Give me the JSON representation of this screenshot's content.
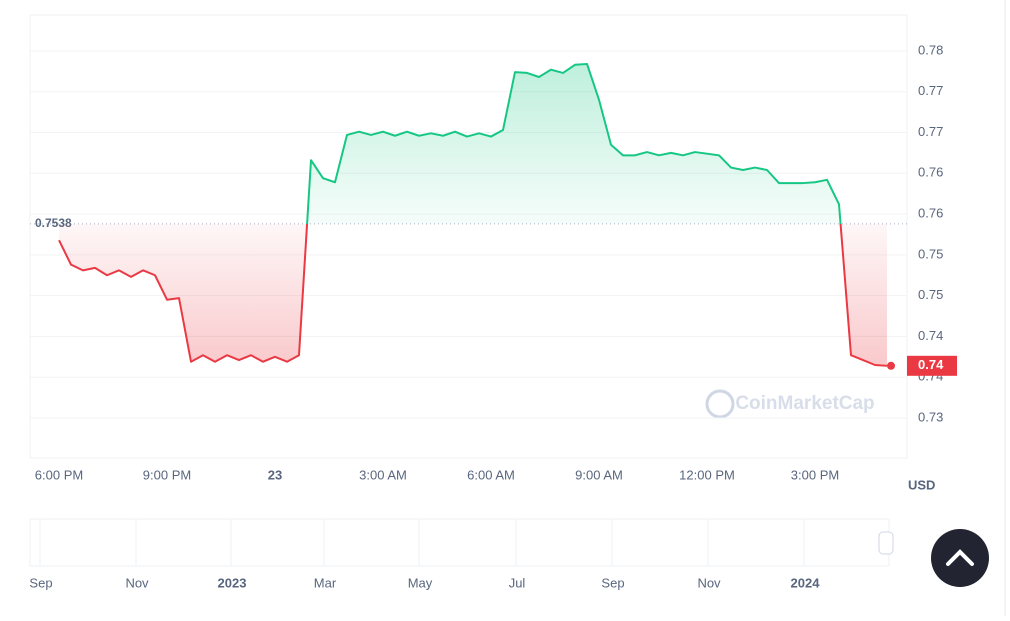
{
  "chart_data": {
    "type": "line",
    "categories": [
      "6:00 PM",
      null,
      null,
      null,
      null,
      null,
      null,
      null,
      null,
      "9:00 PM",
      null,
      null,
      null,
      null,
      null,
      null,
      null,
      null,
      "23",
      null,
      null,
      null,
      null,
      null,
      null,
      null,
      null,
      "3:00 AM",
      null,
      null,
      null,
      null,
      null,
      null,
      null,
      null,
      "6:00 AM",
      null,
      null,
      null,
      null,
      null,
      null,
      null,
      null,
      "9:00 AM",
      null,
      null,
      null,
      null,
      null,
      null,
      null,
      null,
      "12:00 PM",
      null,
      null,
      null,
      null,
      null,
      null,
      null,
      null,
      "3:00 PM",
      null,
      null,
      null,
      null,
      null,
      null
    ],
    "series": [
      {
        "up_color": "#16c784",
        "down_color": "#ea3943",
        "values": [
          0.7518,
          0.7488,
          0.7481,
          0.7484,
          0.7475,
          0.7481,
          0.7473,
          0.7481,
          0.7475,
          0.7445,
          0.7447,
          0.7369,
          0.7377,
          0.7369,
          0.7377,
          0.7371,
          0.7377,
          0.7369,
          0.7375,
          0.7369,
          0.7377,
          0.7616,
          0.7594,
          0.7589,
          0.7647,
          0.7651,
          0.7647,
          0.7651,
          0.7646,
          0.7651,
          0.7646,
          0.7649,
          0.7646,
          0.7651,
          0.7645,
          0.7649,
          0.7645,
          0.7653,
          0.7724,
          0.7723,
          0.7718,
          0.7727,
          0.7723,
          0.7733,
          0.7734,
          0.769,
          0.7635,
          0.7622,
          0.7622,
          0.7626,
          0.7622,
          0.7625,
          0.7622,
          0.7626,
          0.7624,
          0.7622,
          0.7607,
          0.7604,
          0.7607,
          0.7604,
          0.7588,
          0.7588,
          0.7588,
          0.7589,
          0.7592,
          0.7562,
          0.7377,
          0.7371,
          0.7365,
          0.7364
        ]
      }
    ],
    "baseline": 0.7538,
    "last_price_label": "0.74",
    "ylim": [
      0.7251,
      0.7794
    ],
    "yticks": [
      {
        "value": 0.775,
        "label": "0.78"
      },
      {
        "value": 0.77,
        "label": "0.77"
      },
      {
        "value": 0.765,
        "label": "0.77"
      },
      {
        "value": 0.76,
        "label": "0.76"
      },
      {
        "value": 0.755,
        "label": "0.76"
      },
      {
        "value": 0.75,
        "label": "0.75"
      },
      {
        "value": 0.745,
        "label": "0.75"
      },
      {
        "value": 0.74,
        "label": "0.74"
      },
      {
        "value": 0.735,
        "label": "0.74"
      },
      {
        "value": 0.73,
        "label": "0.73"
      }
    ],
    "y_axis_label": "USD",
    "grid": true,
    "watermark": "CoinMarketCap",
    "navigator_labels": [
      "Sep",
      "Nov",
      "2023",
      "Mar",
      "May",
      "Jul",
      "Sep",
      "Nov",
      "2024"
    ]
  }
}
